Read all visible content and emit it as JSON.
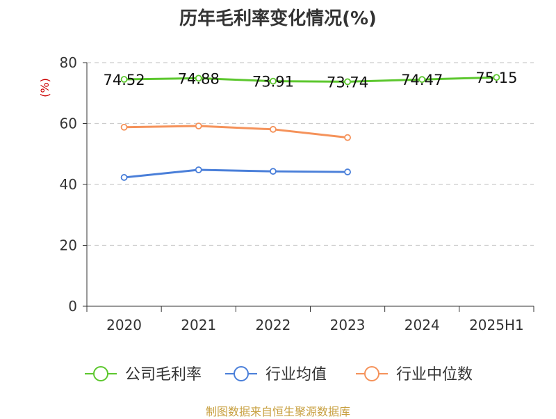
{
  "chart_data": {
    "type": "line",
    "title": "历年毛利率变化情况(%)",
    "ylabel": "(%)",
    "ylim": [
      0,
      80
    ],
    "yticks": [
      0,
      20,
      40,
      60,
      80
    ],
    "grid": true,
    "legend_position": "bottom",
    "categories": [
      "2020",
      "2021",
      "2022",
      "2023",
      "2024",
      "2025H1"
    ],
    "series": [
      {
        "name": "公司毛利率",
        "color": "#5cc72e",
        "values": [
          74.52,
          74.88,
          73.91,
          73.74,
          74.47,
          75.15
        ],
        "labels": [
          "74.52",
          "74.88",
          "73.91",
          "73.74",
          "74.47",
          "75.15"
        ]
      },
      {
        "name": "行业均值",
        "color": "#4a7fd9",
        "values": [
          42.3,
          44.8,
          44.3,
          44.1,
          null,
          null
        ]
      },
      {
        "name": "行业中位数",
        "color": "#f5925a",
        "values": [
          58.8,
          59.2,
          58.1,
          55.4,
          null,
          null
        ]
      }
    ]
  },
  "footer": {
    "source": "制图数据来自恒生聚源数据库"
  }
}
